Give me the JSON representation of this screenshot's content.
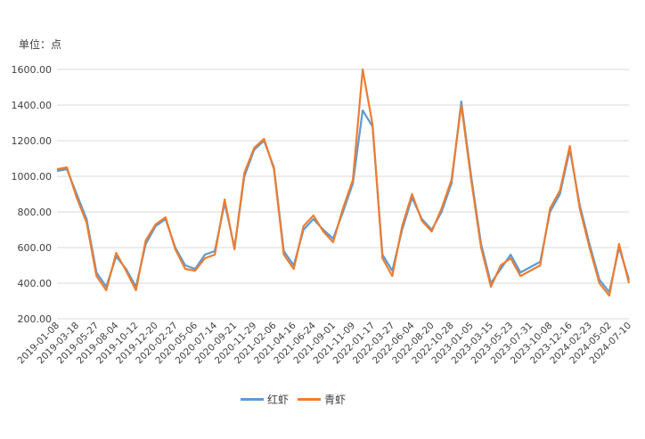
{
  "unit_label": "单位：点",
  "chart_data": {
    "type": "line",
    "ylabel": "单位：点",
    "xlabel": "",
    "ylim": [
      200,
      1600
    ],
    "yticks": [
      "200.00",
      "400.00",
      "600.00",
      "800.00",
      "1000.00",
      "1200.00",
      "1400.00",
      "1600.00"
    ],
    "xticks": [
      "2019-01-08",
      "2019-03-18",
      "2019-05-27",
      "2019-08-04",
      "2019-10-12",
      "2019-12-20",
      "2020-02-27",
      "2020-05-06",
      "2020-07-14",
      "2020-09-21",
      "2020-11-29",
      "2021-02-06",
      "2021-04-16",
      "2021-06-24",
      "2021-09-01",
      "2021-11-09",
      "2022-01-17",
      "2022-03-27",
      "2022-06-04",
      "2022-08-20",
      "2022-10-28",
      "2023-01-05",
      "2023-03-15",
      "2023-05-23",
      "2023-07-31",
      "2023-10-08",
      "2023-12-16",
      "2024-02-23",
      "2024-05-02",
      "2024-07-10"
    ],
    "grid": true,
    "legend_position": "bottom",
    "x": [
      "2019-01-08",
      "2019-02-15",
      "2019-03-18",
      "2019-04-20",
      "2019-05-27",
      "2019-07-01",
      "2019-08-04",
      "2019-09-08",
      "2019-10-12",
      "2019-11-15",
      "2019-12-20",
      "2020-01-25",
      "2020-02-27",
      "2020-04-01",
      "2020-05-06",
      "2020-06-10",
      "2020-07-14",
      "2020-08-17",
      "2020-09-21",
      "2020-10-25",
      "2020-11-29",
      "2021-01-02",
      "2021-02-06",
      "2021-03-12",
      "2021-04-16",
      "2021-05-20",
      "2021-06-24",
      "2021-07-28",
      "2021-09-01",
      "2021-10-05",
      "2021-11-09",
      "2021-12-13",
      "2022-01-17",
      "2022-02-20",
      "2022-03-27",
      "2022-04-30",
      "2022-06-04",
      "2022-07-12",
      "2022-08-20",
      "2022-09-24",
      "2022-10-28",
      "2022-12-01",
      "2023-01-05",
      "2023-02-08",
      "2023-03-15",
      "2023-04-18",
      "2023-05-23",
      "2023-06-26",
      "2023-07-31",
      "2023-09-03",
      "2023-10-08",
      "2023-11-11",
      "2023-12-16",
      "2024-01-19",
      "2024-02-23",
      "2024-03-28",
      "2024-05-02",
      "2024-06-05",
      "2024-07-10"
    ],
    "series": [
      {
        "name": "红虾",
        "color": "#5B9BD5",
        "values": [
          1030,
          1040,
          900,
          760,
          460,
          380,
          550,
          480,
          380,
          620,
          720,
          760,
          600,
          500,
          480,
          560,
          580,
          850,
          600,
          1000,
          1150,
          1200,
          1050,
          580,
          500,
          700,
          760,
          700,
          650,
          800,
          960,
          1370,
          1280,
          560,
          470,
          700,
          880,
          760,
          700,
          800,
          960,
          1420,
          1000,
          620,
          400,
          480,
          560,
          460,
          490,
          520,
          800,
          900,
          1150,
          840,
          620,
          420,
          350,
          600,
          420
        ]
      },
      {
        "name": "青虾",
        "color": "#ED7D31",
        "values": [
          1040,
          1050,
          880,
          740,
          440,
          360,
          570,
          470,
          360,
          640,
          730,
          770,
          590,
          480,
          470,
          540,
          560,
          870,
          590,
          1020,
          1160,
          1210,
          1040,
          560,
          480,
          720,
          780,
          690,
          630,
          820,
          980,
          1600,
          1290,
          540,
          440,
          720,
          900,
          750,
          690,
          820,
          980,
          1400,
          980,
          600,
          380,
          500,
          540,
          440,
          470,
          500,
          820,
          920,
          1170,
          820,
          600,
          400,
          330,
          620,
          400
        ]
      }
    ]
  }
}
